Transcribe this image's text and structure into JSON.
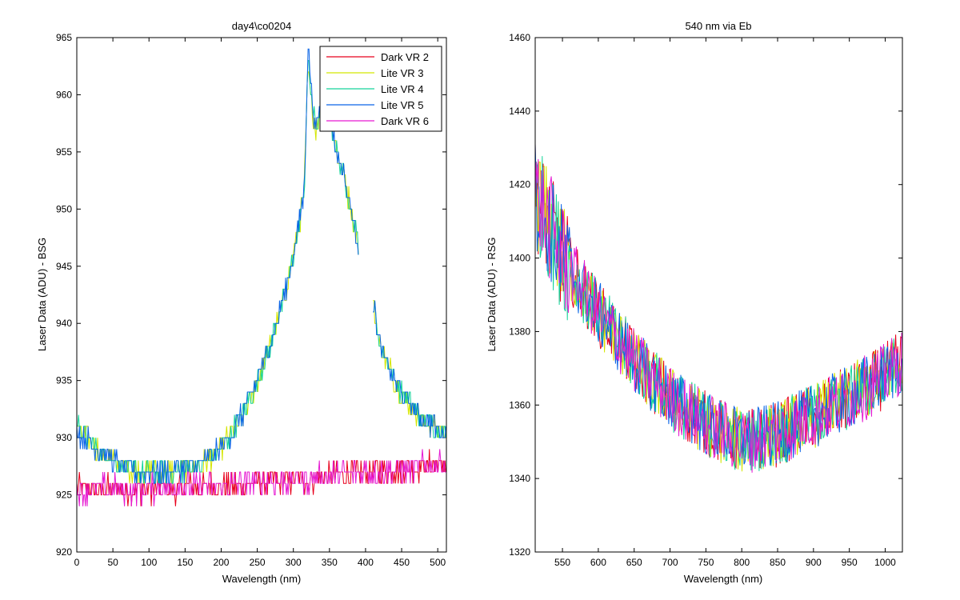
{
  "chart_data": [
    {
      "type": "line",
      "title": "day4\\co0204",
      "xlabel": "Wavelength (nm)",
      "ylabel": "Laser Data (ADU) - BSG",
      "xlim": [
        0,
        512
      ],
      "ylim": [
        920,
        965
      ],
      "xticks": [
        0,
        50,
        100,
        150,
        200,
        250,
        300,
        350,
        400,
        450,
        500
      ],
      "yticks": [
        920,
        925,
        930,
        935,
        940,
        945,
        950,
        955,
        960,
        965
      ],
      "grid": false,
      "legend_position": "top-right",
      "notes": "Lite series are noisy traces with a peak near x≈320-340 and a data gap between x≈390 and x≈410; Dark series are flat noisy traces.",
      "series": [
        {
          "name": "Dark VR 2",
          "color": "#e8001c",
          "x": [
            0,
            50,
            100,
            150,
            200,
            250,
            300,
            350,
            400,
            450,
            512
          ],
          "y": [
            925.5,
            925.5,
            925.5,
            925.6,
            925.7,
            926.0,
            926.3,
            926.6,
            927.0,
            927.3,
            927.7
          ]
        },
        {
          "name": "Lite VR 3",
          "color": "#d4e600",
          "x": [
            0,
            20,
            50,
            80,
            120,
            170,
            190,
            210,
            230,
            250,
            270,
            290,
            305,
            315,
            320,
            330,
            340,
            350,
            360,
            370,
            380,
            390,
            410,
            420,
            440,
            460,
            480,
            512
          ],
          "y": [
            931,
            929.5,
            928,
            927,
            927,
            927.5,
            928.5,
            930,
            932,
            935,
            938.5,
            943,
            947.5,
            951.5,
            962,
            957,
            959,
            958,
            955,
            953,
            950,
            947,
            942,
            938,
            935,
            933,
            931.5,
            930.5
          ]
        },
        {
          "name": "Lite VR 4",
          "color": "#14d49a",
          "x": [
            0,
            20,
            50,
            80,
            120,
            170,
            190,
            210,
            230,
            250,
            270,
            290,
            305,
            315,
            320,
            330,
            340,
            350,
            360,
            370,
            380,
            390,
            410,
            420,
            440,
            460,
            480,
            512
          ],
          "y": [
            931,
            929.5,
            928,
            927,
            927,
            927.5,
            928.5,
            930,
            932,
            935,
            938.5,
            943,
            947.5,
            951.5,
            963,
            957,
            959,
            958,
            955,
            953,
            950,
            947,
            942,
            938,
            935,
            933,
            931.5,
            930.5
          ]
        },
        {
          "name": "Lite VR 5",
          "color": "#0a64e6",
          "x": [
            0,
            20,
            50,
            80,
            120,
            170,
            190,
            210,
            230,
            250,
            270,
            290,
            305,
            315,
            320,
            330,
            340,
            350,
            360,
            370,
            380,
            390,
            410,
            420,
            440,
            460,
            480,
            512
          ],
          "y": [
            930.5,
            929.5,
            928,
            927,
            927,
            927.5,
            928.5,
            930,
            932,
            935,
            938.5,
            943,
            947.5,
            951.5,
            964,
            957,
            959,
            958,
            955,
            953,
            950,
            947,
            942,
            938,
            935,
            933,
            931.5,
            930.5
          ]
        },
        {
          "name": "Dark VR 6",
          "color": "#e619d2",
          "x": [
            0,
            50,
            100,
            150,
            200,
            250,
            300,
            350,
            400,
            450,
            512
          ],
          "y": [
            925.5,
            925.5,
            925.5,
            925.6,
            925.7,
            926.0,
            926.3,
            926.6,
            927.0,
            927.3,
            927.7
          ]
        }
      ]
    },
    {
      "type": "line",
      "title": "540 nm via Eb",
      "xlabel": "Wavelength (nm)",
      "ylabel": "Laser Data (ADU) - RSG",
      "xlim": [
        512,
        1024
      ],
      "ylim": [
        1320,
        1460
      ],
      "xticks": [
        550,
        600,
        650,
        700,
        750,
        800,
        850,
        900,
        950,
        1000
      ],
      "yticks": [
        1320,
        1340,
        1360,
        1380,
        1400,
        1420,
        1440,
        1460
      ],
      "grid": false,
      "notes": "Five overlapping noisy traces (same colors as left legend), U-shaped with minimum near x≈800.",
      "series": [
        {
          "color": "#e8001c",
          "x": [
            512,
            550,
            600,
            650,
            700,
            750,
            800,
            850,
            900,
            950,
            1000,
            1024
          ],
          "y": [
            1418,
            1400,
            1385,
            1372,
            1362,
            1355,
            1350,
            1352,
            1357,
            1362,
            1368,
            1372
          ]
        },
        {
          "color": "#d4e600",
          "x": [
            512,
            550,
            600,
            650,
            700,
            750,
            800,
            850,
            900,
            950,
            1000,
            1024
          ],
          "y": [
            1418,
            1400,
            1385,
            1372,
            1362,
            1355,
            1350,
            1352,
            1357,
            1362,
            1368,
            1372
          ]
        },
        {
          "color": "#14d49a",
          "x": [
            512,
            550,
            600,
            650,
            700,
            750,
            800,
            850,
            900,
            950,
            1000,
            1024
          ],
          "y": [
            1418,
            1400,
            1385,
            1372,
            1362,
            1355,
            1350,
            1352,
            1357,
            1362,
            1368,
            1372
          ]
        },
        {
          "color": "#0a64e6",
          "x": [
            512,
            550,
            600,
            650,
            700,
            750,
            800,
            850,
            900,
            950,
            1000,
            1024
          ],
          "y": [
            1418,
            1400,
            1385,
            1372,
            1362,
            1355,
            1350,
            1352,
            1357,
            1362,
            1368,
            1372
          ]
        },
        {
          "color": "#e619d2",
          "x": [
            512,
            550,
            600,
            650,
            700,
            750,
            800,
            850,
            900,
            950,
            1000,
            1024
          ],
          "y": [
            1418,
            1400,
            1385,
            1372,
            1362,
            1355,
            1350,
            1352,
            1357,
            1362,
            1368,
            1372
          ]
        }
      ]
    }
  ]
}
